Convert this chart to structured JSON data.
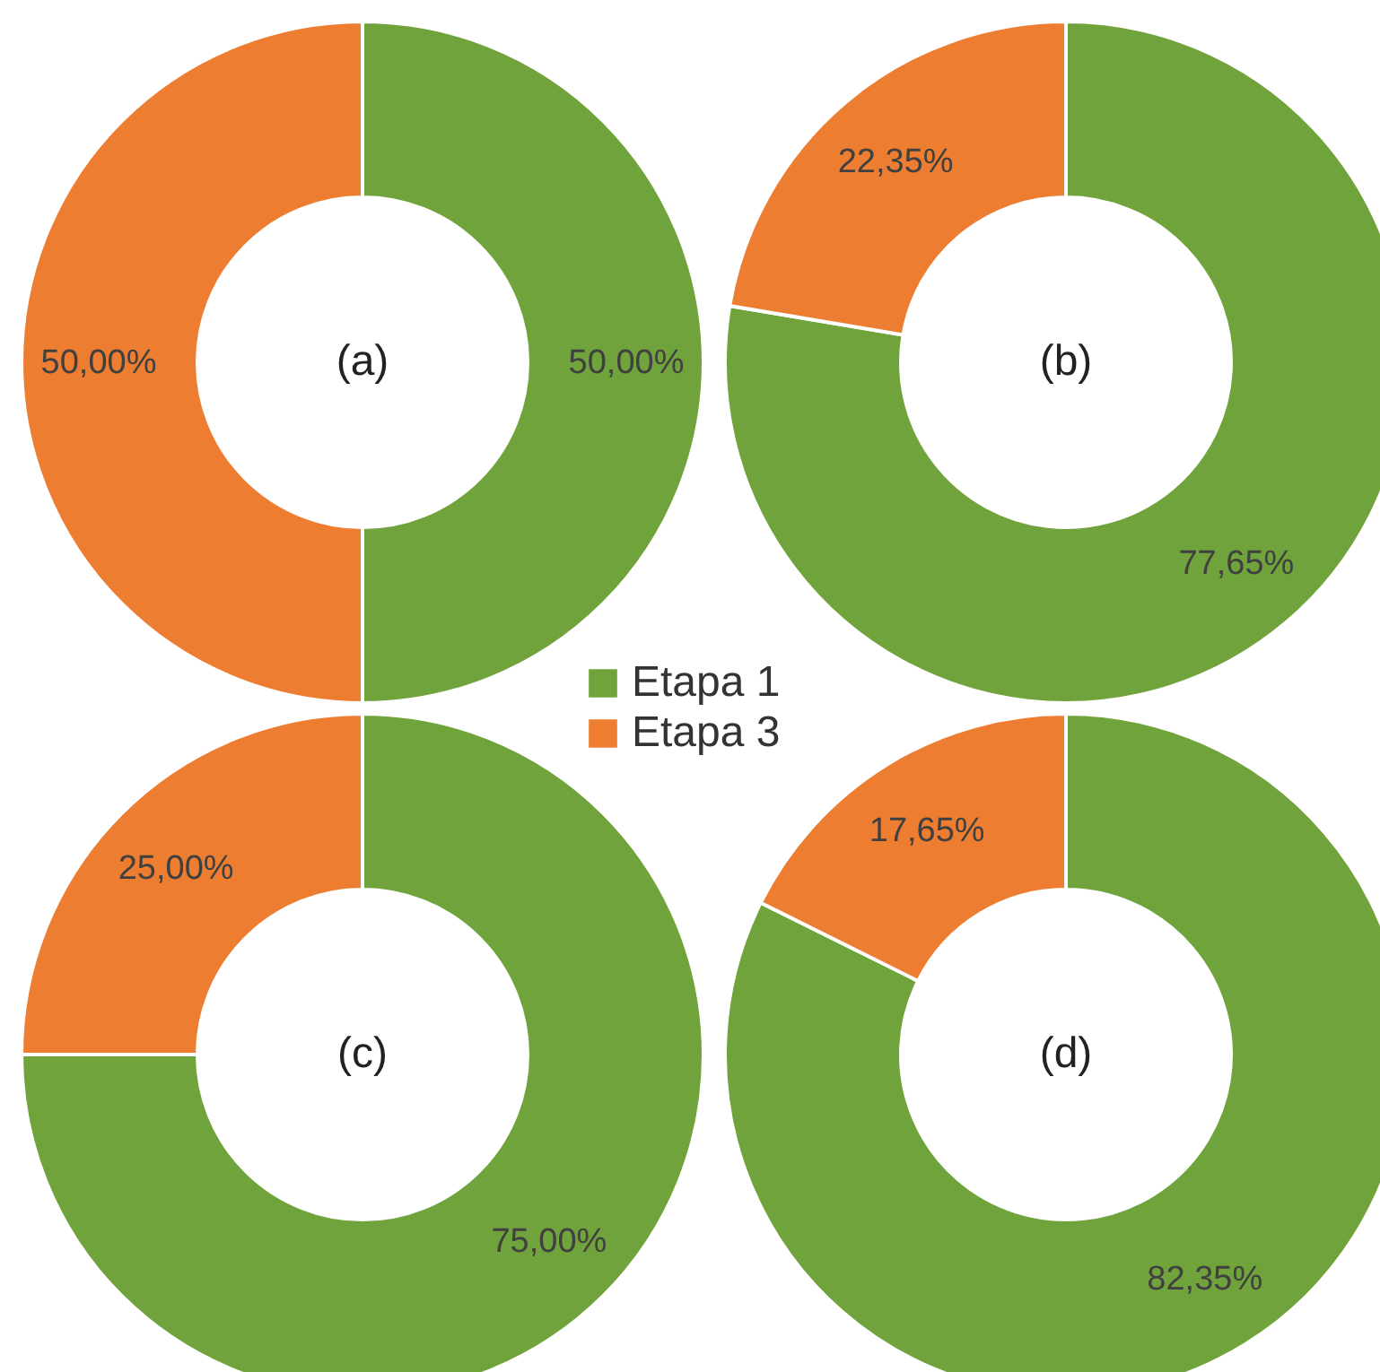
{
  "chart_data": [
    {
      "type": "donut",
      "title": "(a)",
      "categories": [
        "Etapa 1",
        "Etapa 3"
      ],
      "values": [
        50.0,
        50.0
      ],
      "colors": [
        "#70a33b",
        "#ed7d31"
      ],
      "value_labels": [
        "50,00%",
        "50,00%"
      ],
      "legend": "bottom right"
    },
    {
      "type": "donut",
      "title": "(b)",
      "categories": [
        null,
        null
      ],
      "values": [
        77.65,
        22.35
      ],
      "colors": [
        "#70a33b",
        "#ed7d31"
      ],
      "value_labels": [
        "77,65%",
        "22,35%"
      ]
    },
    {
      "type": "donut",
      "title": "(c)",
      "categories": [
        null,
        null
      ],
      "values": [
        75.0,
        25.0
      ],
      "colors": [
        "#70a33b",
        "#ed7d31"
      ],
      "value_labels": [
        "75,00%",
        "25,00%"
      ]
    },
    {
      "type": "donut",
      "title": "(d)",
      "categories": [
        null,
        null
      ],
      "values": [
        82.35,
        17.65
      ],
      "colors": [
        "#70a33b",
        "#ed7d31"
      ],
      "value_labels": [
        "82,35%",
        "17,65%"
      ]
    }
  ]
}
